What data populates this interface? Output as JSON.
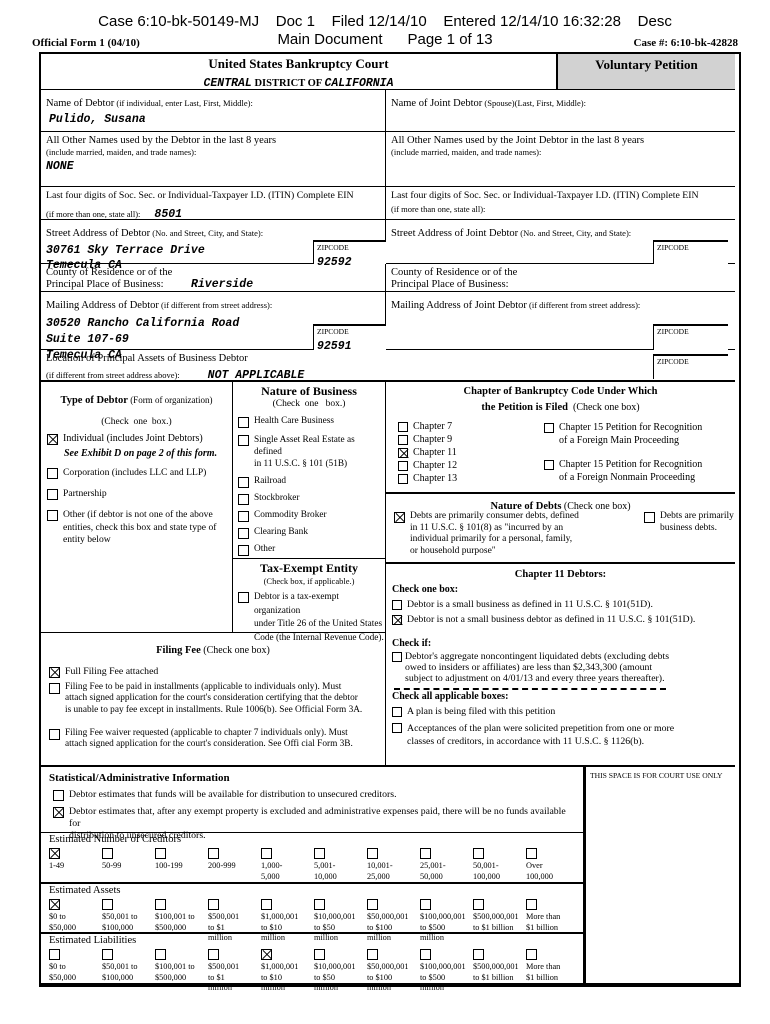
{
  "doc_header": {
    "line1": "Case 6:10-bk-50149-MJ    Doc 1    Filed 12/14/10    Entered 12/14/10 16:32:28    Desc",
    "line2": "Main Document      Page 1 of 13",
    "official_form": "Official Form 1 (04/10)",
    "case_stamp": "Case #: 6:10-bk-42828"
  },
  "court": {
    "title": "United States Bankruptcy Court",
    "district_pre": "CENTRAL",
    "district_mid": " DISTRICT OF ",
    "district_val": "CALIFORNIA",
    "voluntary": "Voluntary Petition"
  },
  "rows": {
    "name": {
      "l_label": "Name of Debtor",
      "l_paren": " (if individual, enter Last, First, Middle):",
      "l_value": "Pulido, Susana",
      "r_label": "Name of Joint Debtor",
      "r_paren": " (Spouse)(Last, First, Middle):"
    },
    "othernames": {
      "l_label": "All Other Names used by the Debtor in the last 8 years",
      "l_sub": "(include married, maiden, and trade names):",
      "l_value": "NONE",
      "r_label": "All Other Names used by the Joint Debtor in the last 8 years",
      "r_sub": "(include married, maiden, and trade names):"
    },
    "ssn": {
      "l_label": "Last four digits of Soc. Sec. or Individual-Taxpayer I.D. (ITIN) Complete EIN",
      "l_sub": "(if more than one, state all):",
      "l_value": "8501",
      "r_label": "Last four digits of Soc. Sec. or Individual-Taxpayer I.D. (ITIN) Complete EIN",
      "r_sub": "(if more than one, state all):"
    },
    "street": {
      "l_label": "Street Address of Debtor",
      "l_paren": " (No. and Street, City, and State):",
      "l_value": "30761 Sky Terrace Drive\nTemecula CA",
      "zip_label": "ZIPCODE",
      "l_zip": "92592",
      "r_label": "Street Address of Joint Debtor",
      "r_paren": " (No. and Street, City, and State):"
    },
    "county": {
      "l_label": "County of Residence or of the\nPrincipal Place of Business:",
      "l_value": "Riverside",
      "r_label": "County of Residence or of the\nPrincipal Place of Business:"
    },
    "mailing": {
      "l_label": "Mailing Address of Debtor",
      "l_paren": " (if different from street address):",
      "l_value": "30520 Rancho California Road\nSuite 107-69\nTemecula CA",
      "l_zip": "92591",
      "r_label": "Mailing Address of Joint Debtor",
      "r_paren": " (if different from street address):"
    },
    "location": {
      "label": "Location of Principal Assets of Business Debtor",
      "sub": "(if different from street address above):",
      "value": "NOT APPLICABLE"
    }
  },
  "type_of_debtor": {
    "title": "Type of Debtor",
    "title_paren": " (Form of organization)",
    "sub": "(Check  one  box.)",
    "items": [
      {
        "checked": true,
        "label": "Individual (includes Joint Debtors)"
      },
      {
        "checked": false,
        "label": "Corporation (includes LLC and LLP)"
      },
      {
        "checked": false,
        "label": "Partnership"
      },
      {
        "checked": false,
        "label": "Other (if debtor is not one of the above\nentities, check this box and state type of\nentity below"
      }
    ],
    "exhibit_note": "See Exhibit D on page 2 of this form."
  },
  "nature_of_business": {
    "title": "Nature of Business",
    "sub": "(Check  one   box.)",
    "items": [
      {
        "checked": false,
        "label": "Health Care Business"
      },
      {
        "checked": false,
        "label": "Single Asset Real Estate as defined\nin 11 U.S.C. § 101 (51B)"
      },
      {
        "checked": false,
        "label": "Railroad"
      },
      {
        "checked": false,
        "label": "Stockbroker"
      },
      {
        "checked": false,
        "label": "Commodity Broker"
      },
      {
        "checked": false,
        "label": "Clearing Bank"
      },
      {
        "checked": false,
        "label": "Other"
      }
    ]
  },
  "tax_exempt": {
    "title": "Tax-Exempt Entity",
    "sub": "(Check box, if applicable.)",
    "item": {
      "checked": false,
      "label": "Debtor is a tax-exempt organization\nunder Title 26 of the United States\nCode (the Internal Revenue Code)."
    }
  },
  "chapter": {
    "title1": "Chapter of Bankruptcy Code Under Which",
    "title2": "the Petition is Filed",
    "title2_paren": "  (Check one box)",
    "left_items": [
      {
        "checked": false,
        "label": "Chapter 7"
      },
      {
        "checked": false,
        "label": "Chapter 9"
      },
      {
        "checked": true,
        "label": "Chapter 11"
      },
      {
        "checked": false,
        "label": "Chapter 12"
      },
      {
        "checked": false,
        "label": "Chapter 13"
      }
    ],
    "right_items": [
      {
        "checked": false,
        "label": "Chapter 15 Petition for Recognition\nof a Foreign Main Proceeding"
      },
      {
        "checked": false,
        "label": "Chapter 15 Petition for Recognition\nof a Foreign Nonmain Proceeding"
      }
    ]
  },
  "nature_of_debts": {
    "title": "Nature of Debts",
    "title_paren": " (Check one box)",
    "consumer": {
      "checked": true,
      "label": "Debts are primarily consumer debts, defined\nin 11 U.S.C. § 101(8) as \"incurred by an\nindividual primarily for a personal, family,\nor household purpose\""
    },
    "business": {
      "checked": false,
      "label": "Debts are primarily\nbusiness debts."
    }
  },
  "chapter11": {
    "title": "Chapter 11 Debtors:",
    "check_one": "Check one box:",
    "small": {
      "checked": false,
      "label": "Debtor is a small business as defined in 11 U.S.C. § 101(51D)."
    },
    "not_small": {
      "checked": true,
      "label": "Debtor is not a small business debtor as defined in 11 U.S.C. § 101(51D)."
    },
    "check_if": "Check if:",
    "aggregate": {
      "checked": false,
      "label": "Debtor's aggregate noncontingent liquidated debts (excluding debts\nowed to insiders or affiliates) are less than $2,343,300 (amount\nsubject to adjustment on 4/01/13 and every three years thereafter)."
    },
    "check_all": "Check all applicable boxes:",
    "plan": {
      "checked": false,
      "label": "A plan is being filed with this petition"
    },
    "acceptances": {
      "checked": false,
      "label": "Acceptances of the plan were solicited prepetition from one or more\nclasses of creditors, in accordance with 11 U.S.C. § 1126(b)."
    }
  },
  "filing_fee": {
    "title": "Filing Fee",
    "title_paren": " (Check one box)",
    "items": [
      {
        "checked": true,
        "label": "Full Filing Fee attached"
      },
      {
        "checked": false,
        "label": "Filing Fee to be paid in installments (applicable to individuals only). Must\nattach signed application for the court's consideration certifying that the debtor\nis unable to pay fee except in installments. Rule 1006(b). See Official Form 3A."
      },
      {
        "checked": false,
        "label": "Filing Fee waiver requested (applicable to chapter 7 individuals only). Must\nattach signed application for the court's consideration. See Offi cial Form 3B."
      }
    ]
  },
  "statistical": {
    "title": "Statistical/Administrative Information",
    "items": [
      {
        "checked": false,
        "label": "Debtor estimates that funds will be available for distribution to unsecured creditors."
      },
      {
        "checked": true,
        "label": "Debtor estimates that, after any exempt property is excluded and administrative expenses paid, there will be no funds available for\ndistribution to unsecured creditors."
      }
    ],
    "court_use": "THIS SPACE IS FOR COURT USE ONLY"
  },
  "estimated_creditors": {
    "title": "Estimated Number of Creditors",
    "cells": [
      {
        "label": "1-49",
        "checked": true
      },
      {
        "label": "50-99",
        "checked": false
      },
      {
        "label": "100-199",
        "checked": false
      },
      {
        "label": "200-999",
        "checked": false
      },
      {
        "label": "1,000-\n5,000",
        "checked": false
      },
      {
        "label": "5,001-\n10,000",
        "checked": false
      },
      {
        "label": "10,001-\n25,000",
        "checked": false
      },
      {
        "label": "25,001-\n50,000",
        "checked": false
      },
      {
        "label": "50,001-\n100,000",
        "checked": false
      },
      {
        "label": "Over\n100,000",
        "checked": false
      }
    ]
  },
  "estimated_assets": {
    "title": "Estimated Assets",
    "cells": [
      {
        "label": "$0 to\n$50,000",
        "checked": true
      },
      {
        "label": "$50,001 to\n$100,000",
        "checked": false
      },
      {
        "label": "$100,001 to\n$500,000",
        "checked": false
      },
      {
        "label": "$500,001\nto $1\nmillion",
        "checked": false
      },
      {
        "label": "$1,000,001\nto $10\nmillion",
        "checked": false
      },
      {
        "label": "$10,000,001\nto $50\nmillion",
        "checked": false
      },
      {
        "label": "$50,000,001\nto $100\nmillion",
        "checked": false
      },
      {
        "label": "$100,000,001\nto $500\nmillion",
        "checked": false
      },
      {
        "label": "$500,000,001\nto $1 billion",
        "checked": false
      },
      {
        "label": "More than\n$1 billion",
        "checked": false
      }
    ]
  },
  "estimated_liabilities": {
    "title": "Estimated Liabilities",
    "cells": [
      {
        "label": "$0 to\n$50,000",
        "checked": false
      },
      {
        "label": "$50,001 to\n$100,000",
        "checked": false
      },
      {
        "label": "$100,001 to\n$500,000",
        "checked": false
      },
      {
        "label": "$500,001\nto $1\nmillion",
        "checked": false
      },
      {
        "label": "$1,000,001\nto $10\nmillion",
        "checked": true
      },
      {
        "label": "$10,000,001\nto $50\nmillion",
        "checked": false
      },
      {
        "label": "$50,000,001\nto $100\nmillion",
        "checked": false
      },
      {
        "label": "$100,000,001\nto $500\nmillion",
        "checked": false
      },
      {
        "label": "$500,000,001\nto $1 billion",
        "checked": false
      },
      {
        "label": "More than\n$1 billion",
        "checked": false
      }
    ]
  },
  "colors": {
    "header_badge_bg": "#d2d2d2"
  }
}
